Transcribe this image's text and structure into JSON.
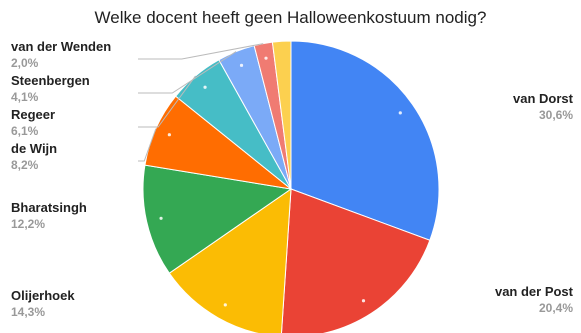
{
  "chart_data": {
    "type": "pie",
    "title": "Welke docent heeft geen Halloweenkostuum nodig?",
    "slices": [
      {
        "label": "van Dorst",
        "value": 30.6,
        "pct_text": "30,6%",
        "color": "#4285f4"
      },
      {
        "label": "van der Post",
        "value": 20.4,
        "pct_text": "20,4%",
        "color": "#ea4335"
      },
      {
        "label": "Olijerhoek",
        "value": 14.3,
        "pct_text": "14,3%",
        "color": "#fbbc04"
      },
      {
        "label": "Bharatsingh",
        "value": 12.2,
        "pct_text": "12,2%",
        "color": "#34a853"
      },
      {
        "label": "de Wijn",
        "value": 8.2,
        "pct_text": "8,2%",
        "color": "#ff6d01"
      },
      {
        "label": "Regeer",
        "value": 6.1,
        "pct_text": "6,1%",
        "color": "#46bdc6"
      },
      {
        "label": "Steenbergen",
        "value": 4.1,
        "pct_text": "4,1%",
        "color": "#7baaf7"
      },
      {
        "label": "van der Wenden",
        "value": 2.0,
        "pct_text": "2,0%",
        "color": "#f07b72"
      },
      {
        "label": "",
        "value": 2.0,
        "pct_text": "",
        "color": "#fcd04f"
      }
    ],
    "start_angle": "12 o'clock",
    "direction": "clockwise",
    "legend": "none"
  }
}
